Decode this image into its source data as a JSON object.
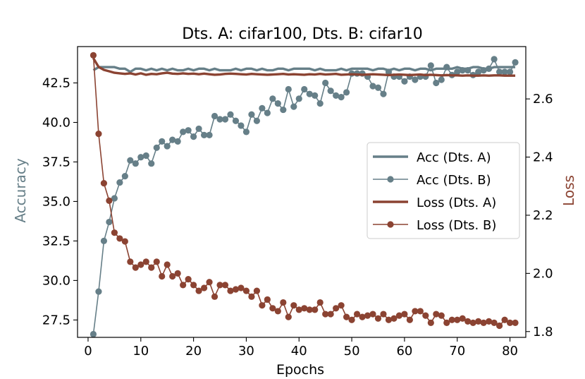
{
  "chart_data": {
    "type": "line",
    "title": "Dts. A: cifar100, Dts. B: cifar10",
    "xlabel": "Epochs",
    "ylabel_left": "Accuracy",
    "ylabel_right": "Loss",
    "xlim": [
      -2,
      83
    ],
    "ylim_left": [
      26.4,
      44.8
    ],
    "ylim_right": [
      1.78,
      2.78
    ],
    "xticks": [
      0,
      10,
      20,
      30,
      40,
      50,
      60,
      70,
      80
    ],
    "yticks_left": [
      27.5,
      30.0,
      32.5,
      35.0,
      37.5,
      40.0,
      42.5
    ],
    "yticks_right": [
      1.8,
      2.0,
      2.2,
      2.4,
      2.6
    ],
    "x_start": 1,
    "legend_position": "center-right",
    "colors": {
      "acc": "#667f88",
      "loss": "#8b4332",
      "axis": "#000000"
    },
    "series": [
      {
        "name": "Acc (Dts. A)",
        "axis": "left",
        "color": "#667f88",
        "marker": false,
        "values": [
          43.3,
          43.5,
          43.5,
          43.5,
          43.5,
          43.4,
          43.4,
          43.2,
          43.4,
          43.4,
          43.3,
          43.4,
          43.3,
          43.4,
          43.3,
          43.4,
          43.3,
          43.3,
          43.4,
          43.3,
          43.4,
          43.4,
          43.3,
          43.4,
          43.3,
          43.3,
          43.3,
          43.4,
          43.3,
          43.4,
          43.4,
          43.3,
          43.4,
          43.3,
          43.3,
          43.4,
          43.4,
          43.3,
          43.4,
          43.4,
          43.4,
          43.4,
          43.3,
          43.4,
          43.3,
          43.3,
          43.3,
          43.4,
          43.3,
          43.4,
          43.4,
          43.4,
          43.4,
          43.3,
          43.4,
          43.4,
          43.3,
          43.4,
          43.3,
          43.4,
          43.4,
          43.3,
          43.4,
          43.4,
          43.3,
          43.4,
          43.4,
          43.4,
          43.4,
          43.5,
          43.4,
          43.4,
          43.5,
          43.5,
          43.4,
          43.4,
          43.5,
          43.5,
          43.5,
          43.5,
          43.5
        ]
      },
      {
        "name": "Acc (Dts. B)",
        "axis": "left",
        "color": "#667f88",
        "marker": true,
        "values": [
          26.6,
          29.3,
          32.5,
          33.7,
          35.2,
          36.2,
          36.6,
          37.6,
          37.4,
          37.8,
          37.9,
          37.4,
          38.4,
          38.8,
          38.5,
          38.9,
          38.8,
          39.4,
          39.5,
          39.1,
          39.6,
          39.2,
          39.2,
          40.4,
          40.2,
          40.2,
          40.5,
          40.1,
          39.8,
          39.4,
          40.5,
          40.1,
          40.9,
          40.6,
          41.5,
          41.2,
          40.8,
          42.1,
          41.0,
          41.5,
          42.1,
          41.8,
          41.7,
          41.2,
          42.5,
          42.0,
          41.7,
          41.6,
          41.9,
          43.1,
          43.1,
          43.1,
          42.9,
          42.3,
          42.2,
          41.8,
          43.2,
          42.9,
          42.9,
          42.6,
          42.9,
          42.7,
          42.9,
          42.9,
          43.6,
          42.5,
          42.7,
          43.5,
          43.0,
          43.2,
          43.3,
          43.3,
          43.0,
          43.2,
          43.3,
          43.4,
          44.0,
          43.2,
          43.2,
          43.2,
          43.8
        ]
      },
      {
        "name": "Loss (Dts. A)",
        "axis": "right",
        "color": "#8b4332",
        "marker": false,
        "values": [
          2.74,
          2.71,
          2.7,
          2.695,
          2.69,
          2.688,
          2.686,
          2.688,
          2.684,
          2.688,
          2.683,
          2.686,
          2.685,
          2.688,
          2.69,
          2.687,
          2.686,
          2.688,
          2.686,
          2.687,
          2.685,
          2.687,
          2.685,
          2.683,
          2.684,
          2.686,
          2.687,
          2.686,
          2.685,
          2.684,
          2.686,
          2.685,
          2.684,
          2.683,
          2.684,
          2.685,
          2.686,
          2.684,
          2.685,
          2.684,
          2.683,
          2.685,
          2.684,
          2.686,
          2.684,
          2.685,
          2.686,
          2.683,
          2.684,
          2.685,
          2.684,
          2.683,
          2.684,
          2.685,
          2.684,
          2.683,
          2.682,
          2.683,
          2.684,
          2.683,
          2.682,
          2.683,
          2.684,
          2.682,
          2.683,
          2.682,
          2.681,
          2.682,
          2.681,
          2.681,
          2.68,
          2.681,
          2.68,
          2.68,
          2.681,
          2.68,
          2.681,
          2.681,
          2.68,
          2.68,
          2.68
        ]
      },
      {
        "name": "Loss (Dts. B)",
        "axis": "right",
        "color": "#8b4332",
        "marker": true,
        "values": [
          2.75,
          2.48,
          2.31,
          2.25,
          2.14,
          2.12,
          2.11,
          2.04,
          2.02,
          2.03,
          2.04,
          2.02,
          2.04,
          1.99,
          2.03,
          1.99,
          2.0,
          1.96,
          1.98,
          1.96,
          1.94,
          1.95,
          1.97,
          1.92,
          1.96,
          1.96,
          1.94,
          1.945,
          1.95,
          1.94,
          1.92,
          1.94,
          1.89,
          1.91,
          1.88,
          1.87,
          1.9,
          1.85,
          1.89,
          1.875,
          1.88,
          1.875,
          1.875,
          1.9,
          1.86,
          1.86,
          1.88,
          1.89,
          1.85,
          1.84,
          1.86,
          1.85,
          1.855,
          1.86,
          1.845,
          1.86,
          1.84,
          1.845,
          1.855,
          1.86,
          1.84,
          1.87,
          1.87,
          1.855,
          1.83,
          1.86,
          1.855,
          1.83,
          1.84,
          1.84,
          1.845,
          1.835,
          1.83,
          1.835,
          1.83,
          1.835,
          1.83,
          1.82,
          1.84,
          1.83,
          1.83
        ]
      }
    ]
  }
}
